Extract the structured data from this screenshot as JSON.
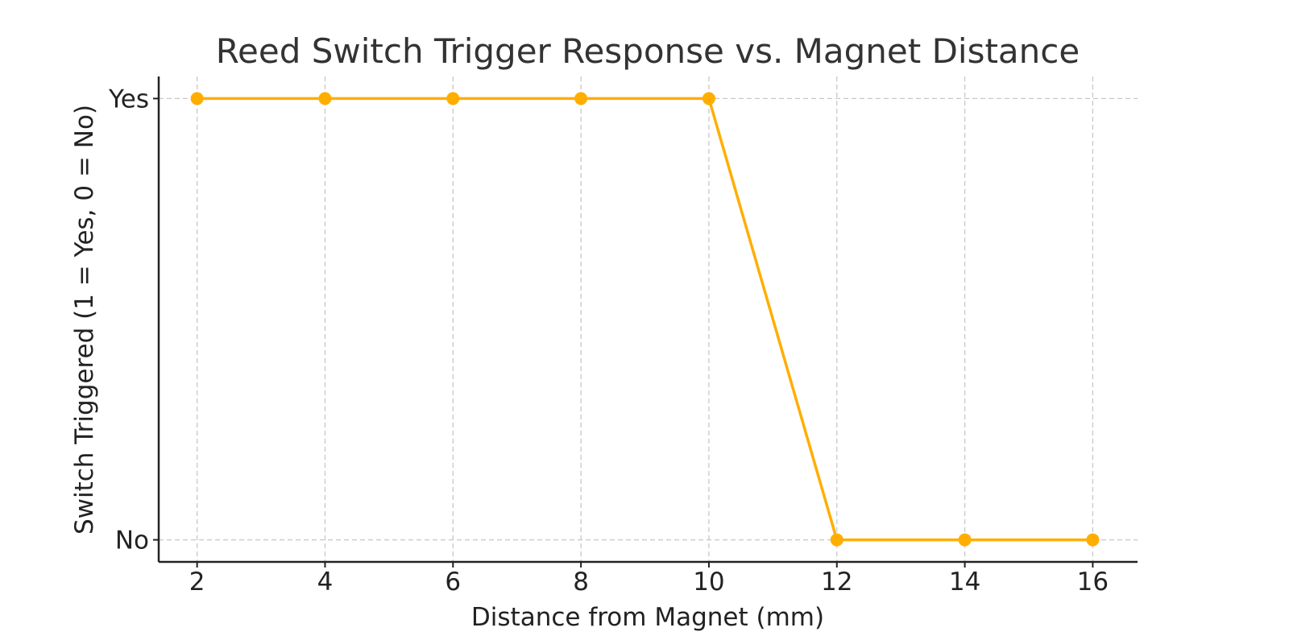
{
  "chart_data": {
    "type": "line",
    "title": "Reed Switch Trigger Response vs. Magnet Distance",
    "xlabel": "Distance from Magnet (mm)",
    "ylabel": "Switch Triggered (1 = Yes, 0 = No)",
    "x": [
      2,
      4,
      6,
      8,
      10,
      12,
      14,
      16
    ],
    "y": [
      1,
      1,
      1,
      1,
      1,
      0,
      0,
      0
    ],
    "xticks": [
      2,
      4,
      6,
      8,
      10,
      12,
      14,
      16
    ],
    "yticks": [
      {
        "value": 0,
        "label": "No"
      },
      {
        "value": 1,
        "label": "Yes"
      }
    ],
    "xlim": [
      1.4,
      16.7
    ],
    "ylim": [
      -0.05,
      1.05
    ],
    "grid": true,
    "legend": false,
    "series_color": "#FFAE00"
  }
}
